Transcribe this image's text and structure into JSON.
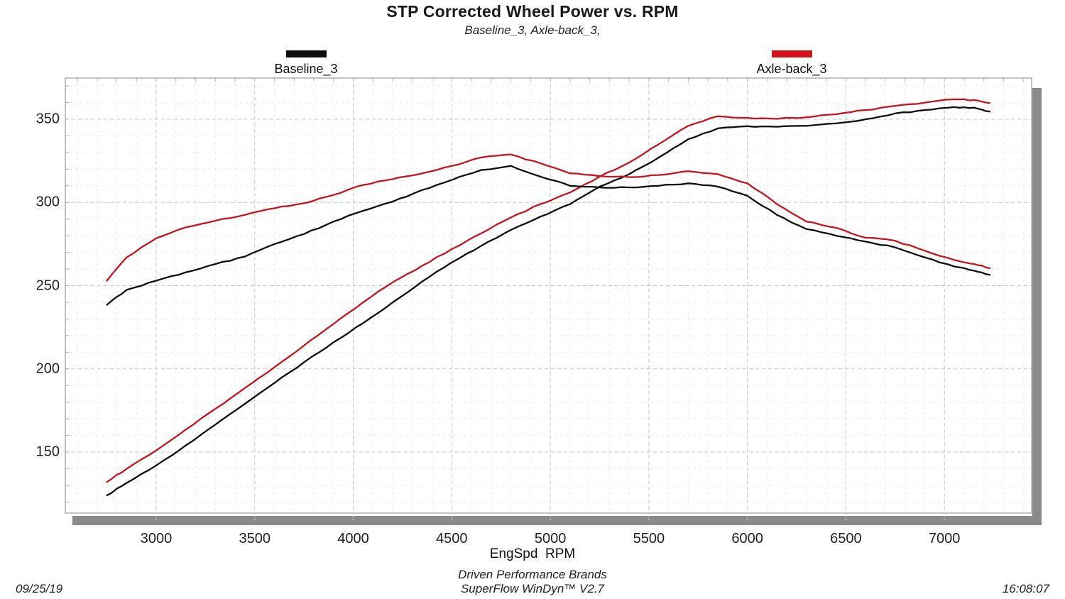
{
  "header": {
    "title": "STP Corrected Wheel Power vs. RPM",
    "subtitle": "Baseline_3, Axle-back_3,"
  },
  "legend": [
    {
      "label": "Baseline_3",
      "color": "#0d0d0d"
    },
    {
      "label": "Axle-back_3",
      "color": "#d41318"
    }
  ],
  "footer": {
    "xlabel": "EngSpd  RPM",
    "brand": "Driven Performance Brands",
    "software": "SuperFlow WinDyn™ V2.7",
    "date": "09/25/19",
    "time": "16:08:07"
  },
  "chart_data": {
    "type": "line",
    "title": "STP Corrected Wheel Power vs. RPM",
    "xlabel": "EngSpd RPM",
    "ylabel": "",
    "x_ticks": [
      3000,
      3500,
      4000,
      4500,
      5000,
      5500,
      6000,
      6500,
      7000
    ],
    "y_ticks": [
      350,
      300,
      250,
      200,
      150
    ],
    "xlim": [
      2540,
      7460
    ],
    "ylim": [
      113,
      375
    ],
    "grid": {
      "minor_x_step": 100,
      "minor_y_step": 10,
      "major_x_step": 500,
      "major_y_step": 50
    },
    "x": [
      2750,
      2850,
      3000,
      3150,
      3300,
      3450,
      3600,
      3750,
      3900,
      4050,
      4200,
      4350,
      4500,
      4650,
      4800,
      4950,
      5100,
      5250,
      5400,
      5550,
      5700,
      5850,
      6000,
      6150,
      6300,
      6450,
      6600,
      6750,
      6900,
      7050,
      7150,
      7230
    ],
    "series": [
      {
        "name": "Baseline_3 power",
        "run": "Baseline_3",
        "color": "#0d0d0d",
        "values": [
          124,
          131.5,
          142,
          154,
          166.5,
          179,
          191.5,
          204,
          216,
          227.5,
          240,
          252.5,
          264,
          274,
          283.5,
          291.5,
          299,
          309.5,
          317,
          327,
          338,
          344.5,
          345.8,
          345.5,
          346,
          347.5,
          350,
          353.5,
          355.5,
          357.3,
          357,
          354.6
        ]
      },
      {
        "name": "Axle-back_3 power",
        "run": "Axle-back_3",
        "color": "#c41420",
        "values": [
          132,
          140,
          151,
          163.5,
          176,
          188.5,
          201,
          214,
          227,
          240,
          252,
          262,
          272,
          281.5,
          291,
          299,
          306,
          315.5,
          324,
          335,
          346,
          351.8,
          350.8,
          350.2,
          351.2,
          353,
          355.5,
          358,
          360,
          362,
          361.5,
          359.8
        ]
      },
      {
        "name": "Baseline_3 torque",
        "run": "Baseline_3",
        "color": "#0d0d0d",
        "values": [
          238.5,
          247.5,
          253,
          258,
          263,
          267.5,
          275,
          281,
          288.5,
          295,
          300.5,
          307.5,
          313.5,
          319.5,
          322,
          315.5,
          310,
          309,
          309,
          310,
          311.5,
          309.5,
          304,
          292.5,
          284,
          280,
          276.5,
          273,
          267,
          261.5,
          259,
          256.5
        ]
      },
      {
        "name": "Axle-back_3 torque",
        "run": "Axle-back_3",
        "color": "#c41420",
        "values": [
          253,
          267,
          278.5,
          285,
          289,
          292.5,
          296.5,
          299.5,
          304.5,
          310.5,
          314,
          317.5,
          322,
          327,
          328.8,
          323.5,
          317.5,
          315.8,
          315.2,
          316.5,
          318.8,
          317,
          311.5,
          299,
          288.5,
          284.8,
          278.8,
          277,
          271,
          265.5,
          263,
          260.5
        ]
      }
    ],
    "legend_position": "top",
    "notes": "Two runs, each with a power curve (rising) and a torque curve (peaking ~4750 RPM), shared value axis"
  }
}
